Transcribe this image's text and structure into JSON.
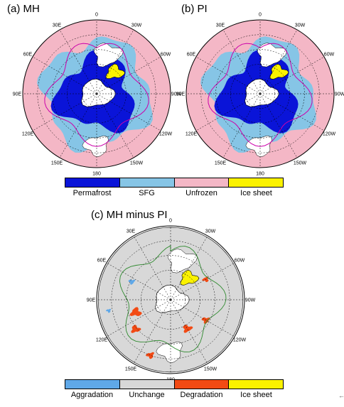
{
  "panels": [
    {
      "id": "a",
      "title": "(a)  MH"
    },
    {
      "id": "b",
      "title": "(b)  PI"
    },
    {
      "id": "c",
      "title": "(c)  MH minus PI"
    }
  ],
  "longitude_labels": [
    "0",
    "30W",
    "60W",
    "90W",
    "120W",
    "150W",
    "180",
    "150E",
    "120E",
    "90E",
    "60E",
    "30E"
  ],
  "legend_top": {
    "items": [
      {
        "label": "Permafrost",
        "color": "#0a14d8"
      },
      {
        "label": "SFG",
        "color": "#86c5e6"
      },
      {
        "label": "Unfrozen",
        "color": "#f4b7c6"
      },
      {
        "label": "Ice sheet",
        "color": "#fbf200"
      }
    ]
  },
  "legend_bottom": {
    "items": [
      {
        "label": "Aggradation",
        "color": "#5fa8e8"
      },
      {
        "label": "Unchange",
        "color": "#d8d8d8"
      },
      {
        "label": "Degradation",
        "color": "#f24a14"
      },
      {
        "label": "Ice sheet",
        "color": "#fbf200"
      }
    ]
  },
  "colors": {
    "permafrost_boundary": "#cc00aa",
    "change_contour": "#2f8a2f",
    "ocean": "#ffffff",
    "coastline": "#000000",
    "graticule": "#000000"
  },
  "corner_mark": "←"
}
